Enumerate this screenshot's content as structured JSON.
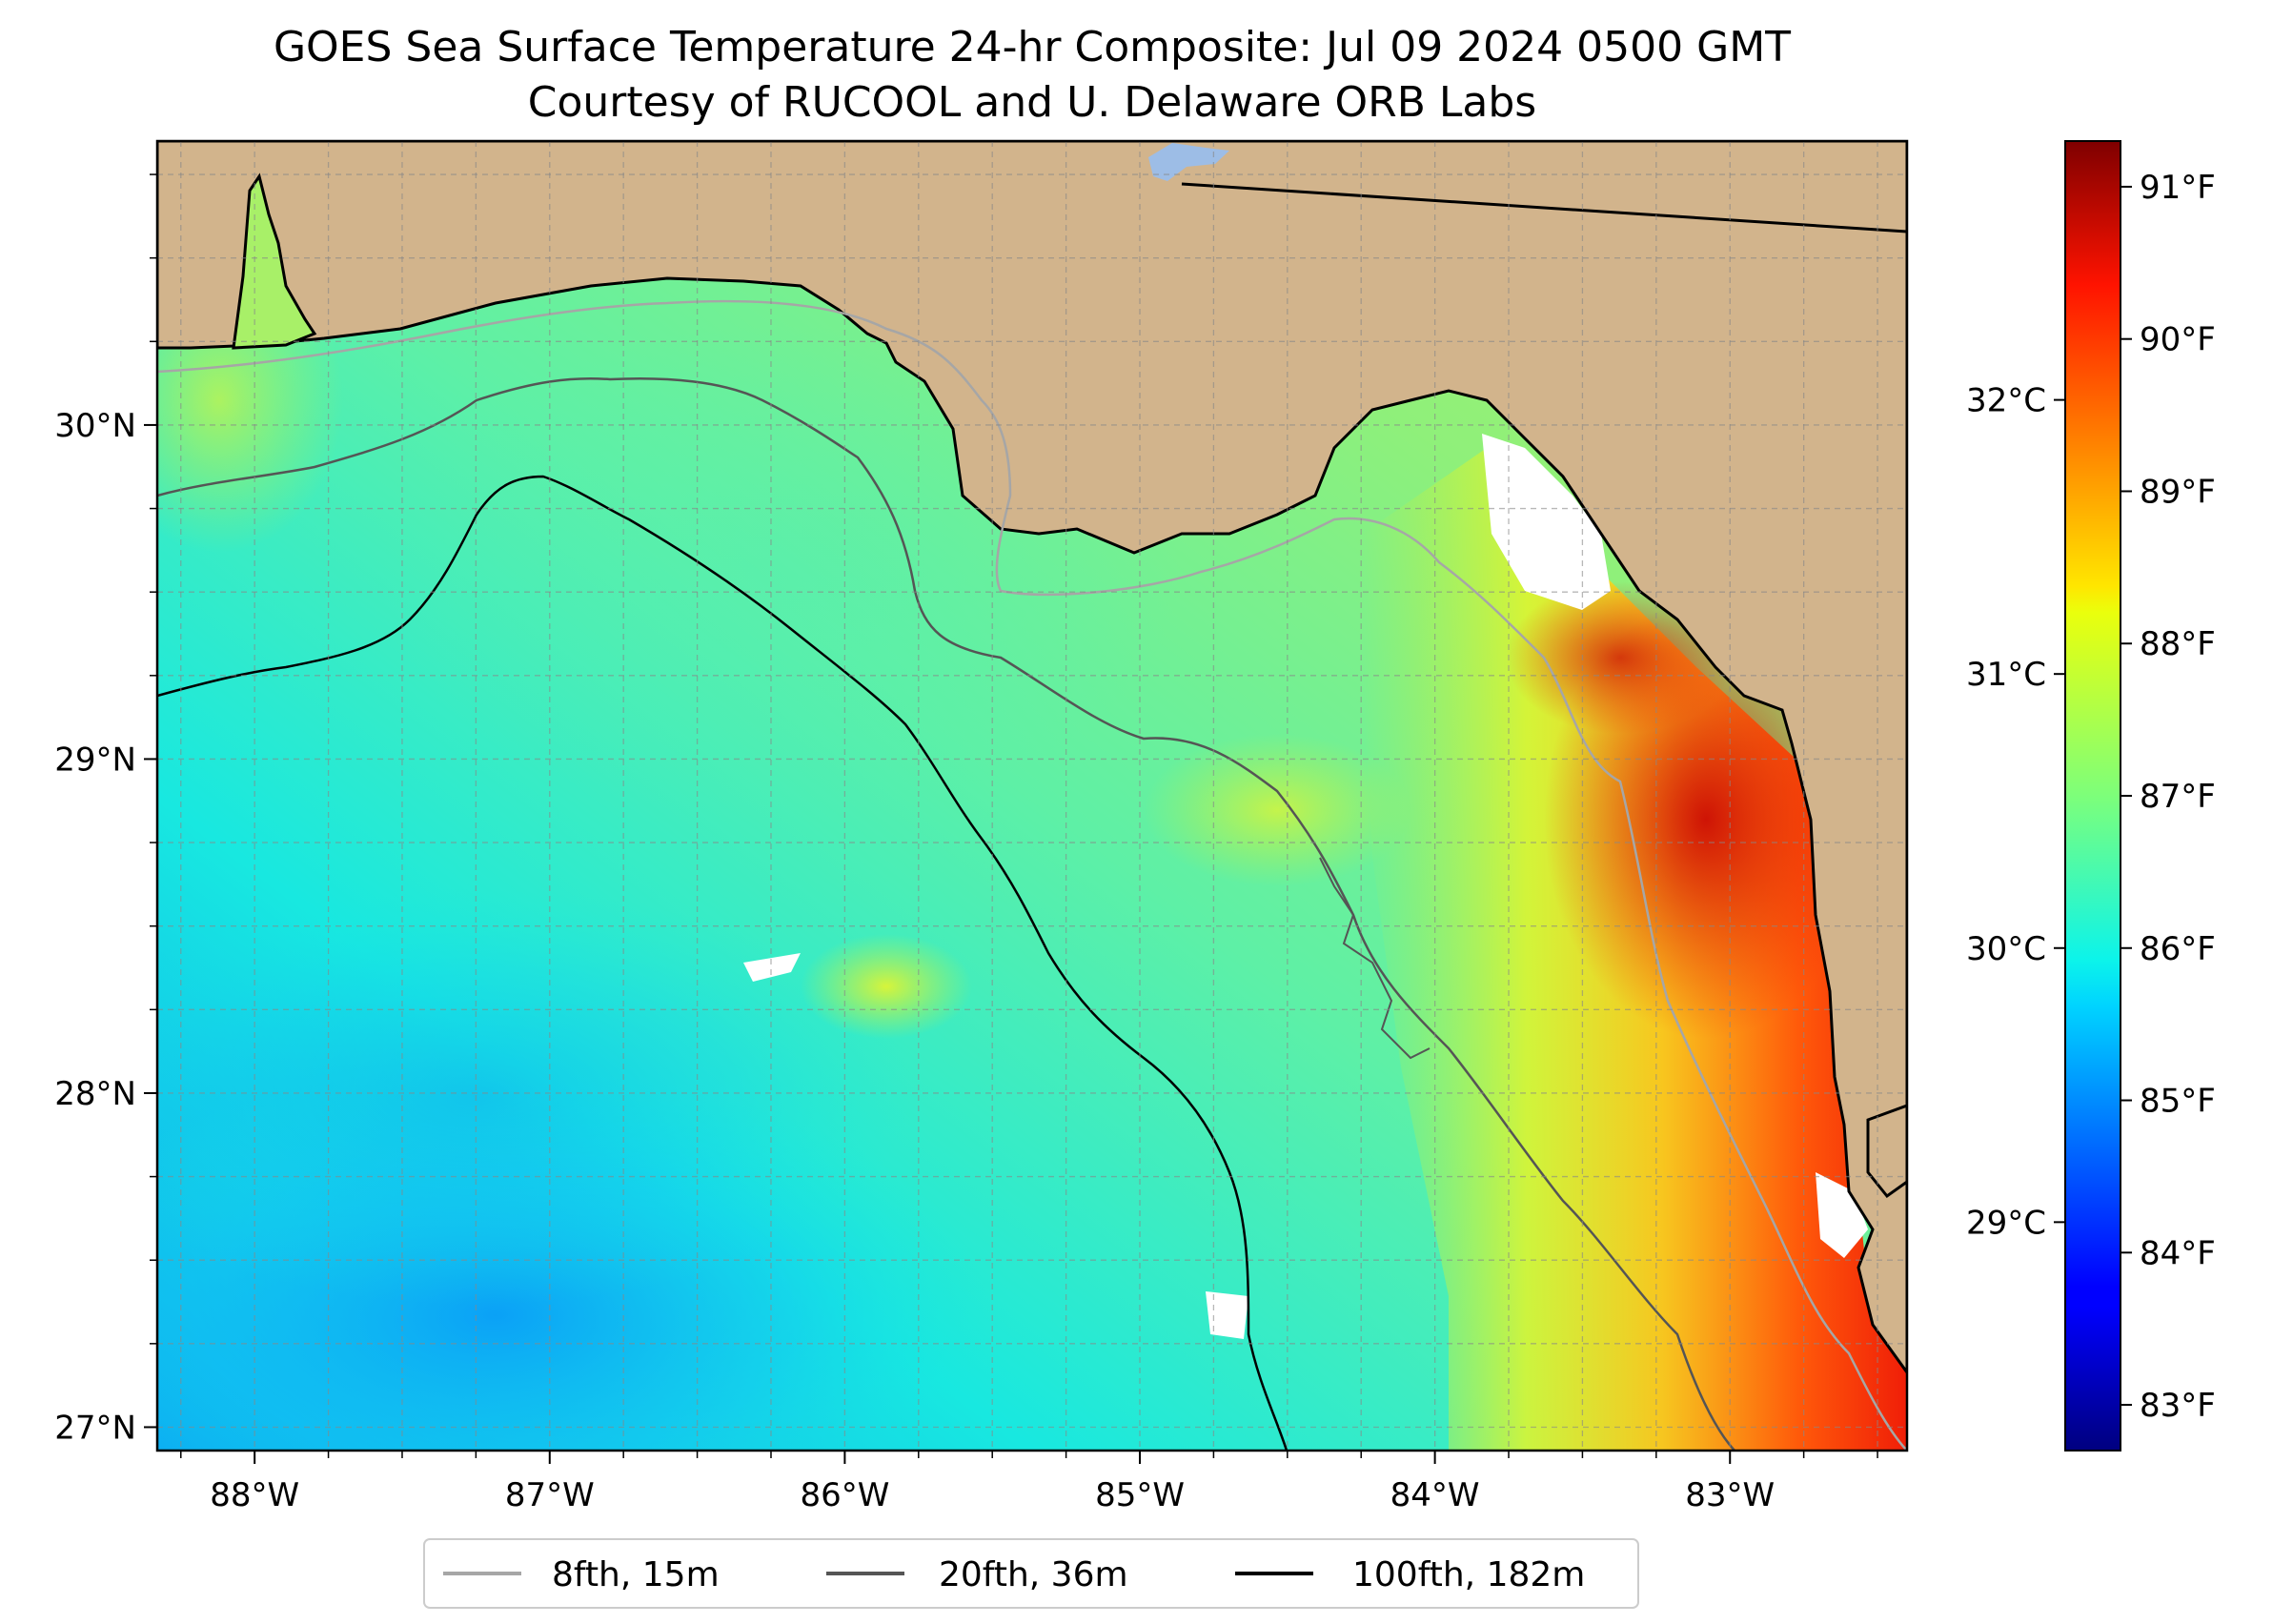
{
  "title": {
    "line1": "GOES Sea Surface Temperature 24-hr Composite: Jul 09 2024 0500 GMT",
    "line2": "Courtesy of RUCOOL and U. Delaware ORB Labs"
  },
  "map": {
    "lon_range": [
      -88.33,
      -82.4
    ],
    "lat_range": [
      26.93,
      30.85
    ],
    "lon_ticks": [
      "88°W",
      "87°W",
      "86°W",
      "85°W",
      "84°W",
      "83°W"
    ],
    "lat_ticks": [
      "27°N",
      "28°N",
      "29°N",
      "30°N"
    ],
    "gridlines": true,
    "colors": {
      "land": "#d2b48c",
      "lake": "#9dbde6",
      "coastline": "#000000",
      "no_data": "#ffffff"
    }
  },
  "colorbar": {
    "colormap": "jet",
    "fahrenheit_ticks": [
      "83°F",
      "84°F",
      "85°F",
      "86°F",
      "87°F",
      "88°F",
      "89°F",
      "90°F",
      "91°F"
    ],
    "celsius_ticks": [
      "29°C",
      "30°C",
      "31°C",
      "32°C"
    ],
    "range_f": [
      82.7,
      91.3
    ]
  },
  "legend": {
    "items": [
      {
        "label": "8fth, 15m",
        "color": "#a6a6a6"
      },
      {
        "label": "20fth, 36m",
        "color": "#555555"
      },
      {
        "label": "100fth, 182m",
        "color": "#000000"
      }
    ]
  }
}
